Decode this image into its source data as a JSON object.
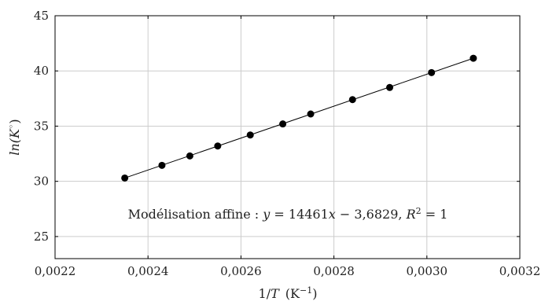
{
  "chart_data": {
    "type": "scatter",
    "xlabel": "1/T (K⁻¹)",
    "xlabel_parts": {
      "pre": "1/",
      "var": "T",
      "unit": "(K",
      "sup": "−1",
      "close": ")"
    },
    "ylabel": "ln(K°)",
    "ylabel_parts": {
      "pre": "ln(",
      "var": "K",
      "sup": "◦",
      "close": ")"
    },
    "xlim": [
      0.0022,
      0.0032
    ],
    "ylim": [
      23,
      45
    ],
    "x_ticks": [
      0.0022,
      0.0024,
      0.0026,
      0.0028,
      0.003,
      0.0032
    ],
    "x_tick_labels": [
      "0,0022",
      "0,0024",
      "0,0026",
      "0,0028",
      "0,0030",
      "0,0032"
    ],
    "y_ticks": [
      25,
      30,
      35,
      40,
      45
    ],
    "y_tick_labels": [
      "25",
      "30",
      "35",
      "40",
      "45"
    ],
    "grid": true,
    "points": [
      {
        "x": 0.00235,
        "y": 30.3
      },
      {
        "x": 0.00243,
        "y": 31.45
      },
      {
        "x": 0.00249,
        "y": 32.3
      },
      {
        "x": 0.00255,
        "y": 33.2
      },
      {
        "x": 0.00262,
        "y": 34.2
      },
      {
        "x": 0.00269,
        "y": 35.2
      },
      {
        "x": 0.00275,
        "y": 36.1
      },
      {
        "x": 0.00284,
        "y": 37.4
      },
      {
        "x": 0.00292,
        "y": 38.5
      },
      {
        "x": 0.00301,
        "y": 39.85
      },
      {
        "x": 0.0031,
        "y": 41.15
      }
    ],
    "fit": {
      "slope": 14461,
      "intercept": -3.6829,
      "x_range": [
        0.00235,
        0.0031
      ]
    },
    "annotation": {
      "prefix": "Modélisation affine : ",
      "y_var": "y",
      "eq": " = 14461",
      "x_var": "x",
      "rest": " − 3,6829, ",
      "r_var": "R",
      "r_sup": "2",
      "r_val": " = 1"
    }
  }
}
